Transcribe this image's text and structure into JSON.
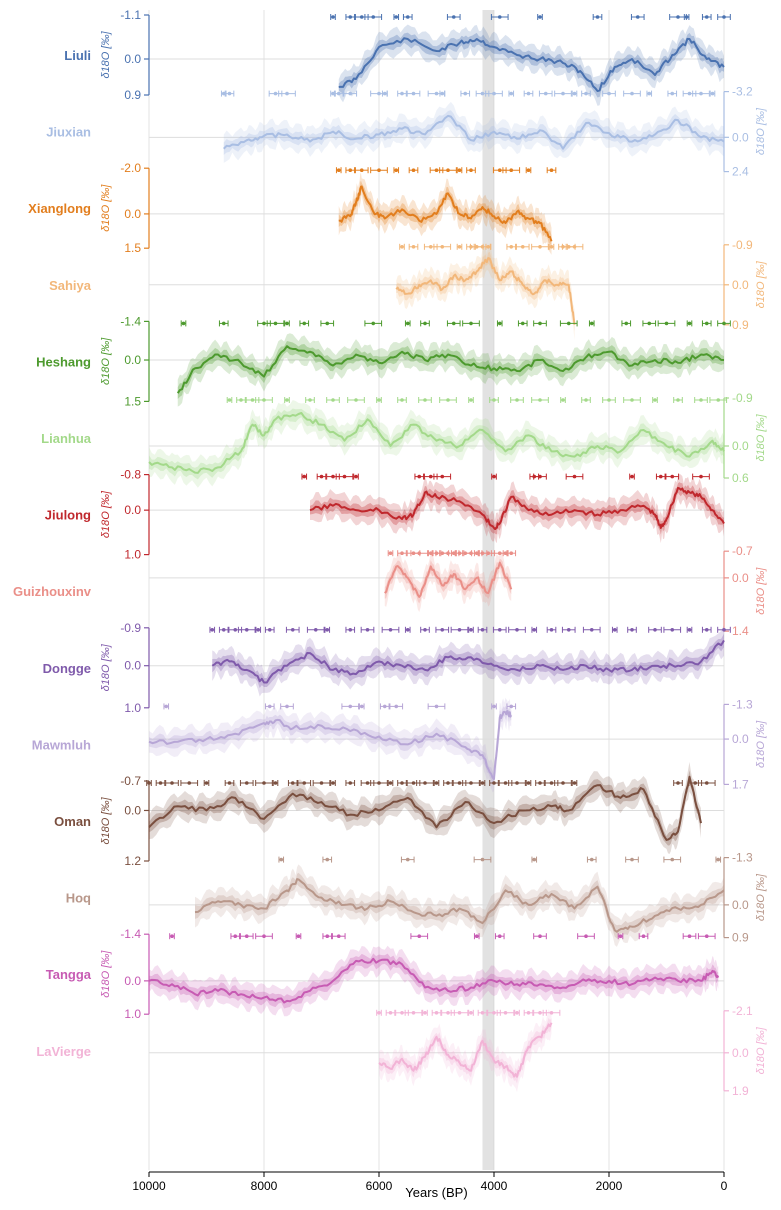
{
  "chart_data": {
    "type": "line",
    "xlabel": "Years (BP)",
    "xlim": [
      10000,
      0
    ],
    "x_ticks": [
      "10000",
      "8000",
      "6000",
      "4000",
      "2000",
      "0"
    ],
    "event_band": [
      4200,
      4000
    ],
    "y_unit": "δ18O [‰]",
    "series": [
      {
        "name": "Liuli",
        "color": "#4a72b0",
        "axis_side": "left",
        "ticks": [
          "-1.1",
          "0.0",
          "0.9"
        ],
        "ylim": [
          0.9,
          -1.1
        ],
        "x": [
          6700,
          6400,
          6000,
          5500,
          5000,
          4600,
          4300,
          4000,
          3600,
          3200,
          2800,
          2500,
          2200,
          1900,
          1600,
          1200,
          900,
          600,
          300,
          0
        ],
        "values": [
          0.7,
          0.5,
          -0.3,
          -0.5,
          -0.2,
          -0.4,
          -0.5,
          -0.3,
          -0.1,
          0.0,
          0.1,
          0.3,
          0.8,
          0.2,
          0.0,
          0.4,
          -0.1,
          -0.5,
          0.0,
          0.2
        ],
        "dates": [
          6800,
          6500,
          6300,
          6100,
          5700,
          5500,
          4700,
          3900,
          3200,
          2200,
          1500,
          800,
          650,
          300,
          0
        ]
      },
      {
        "name": "Jiuxian",
        "color": "#a9bee3",
        "axis_side": "right",
        "ticks": [
          "-3.2",
          "0.0",
          "2.4"
        ],
        "ylim": [
          2.4,
          -3.2
        ],
        "x": [
          8700,
          8300,
          8000,
          7600,
          7200,
          6800,
          6400,
          6000,
          5600,
          5200,
          4800,
          4400,
          4000,
          3600,
          3200,
          2800,
          2400,
          2000,
          1600,
          1200,
          800,
          400,
          0
        ],
        "values": [
          0.8,
          0.2,
          -0.1,
          -0.2,
          0.3,
          -0.4,
          0.1,
          -0.2,
          -0.6,
          -0.2,
          -1.5,
          0.2,
          -0.4,
          0.1,
          -0.5,
          0.8,
          -1.0,
          -0.3,
          0.3,
          -0.2,
          -1.2,
          0.0,
          0.3
        ],
        "dates": [
          8700,
          8600,
          7800,
          7600,
          6800,
          6700,
          6500,
          6000,
          5900,
          5600,
          5400,
          5000,
          4900,
          4500,
          4200,
          4000,
          3700,
          3400,
          3100,
          2800,
          2600,
          2400,
          2000,
          1600,
          1300,
          900,
          600,
          400,
          200
        ]
      },
      {
        "name": "Xianglong",
        "color": "#e27e1e",
        "axis_side": "left",
        "ticks": [
          "-2.0",
          "0.0",
          "1.5"
        ],
        "ylim": [
          1.5,
          -2.0
        ],
        "x": [
          6700,
          6500,
          6400,
          6300,
          6100,
          5900,
          5600,
          5300,
          5000,
          4800,
          4600,
          4400,
          4200,
          4000,
          3800,
          3600,
          3400,
          3200,
          3000
        ],
        "values": [
          0.3,
          0.1,
          -0.5,
          -1.2,
          -0.1,
          0.2,
          -0.2,
          0.3,
          0.0,
          -0.9,
          0.0,
          0.2,
          -0.3,
          0.1,
          0.4,
          -0.1,
          0.2,
          0.4,
          1.2
        ],
        "dates": [
          6700,
          6500,
          6300,
          6000,
          5700,
          5400,
          5000,
          4800,
          4600,
          4400,
          3900,
          3700,
          3400,
          3000
        ]
      },
      {
        "name": "Sahiya",
        "color": "#f2b77a",
        "axis_side": "right",
        "ticks": [
          "-0.9",
          "0.0",
          "0.9"
        ],
        "ylim": [
          0.9,
          -0.9
        ],
        "x": [
          5700,
          5500,
          5300,
          5100,
          4900,
          4700,
          4500,
          4300,
          4100,
          3900,
          3700,
          3500,
          3300,
          3100,
          2900,
          2700,
          2600
        ],
        "values": [
          0.1,
          0.2,
          0.0,
          -0.1,
          0.1,
          -0.2,
          -0.1,
          -0.3,
          -0.6,
          -0.1,
          -0.3,
          0.0,
          0.2,
          -0.1,
          0.0,
          0.0,
          0.9
        ],
        "dates": [
          5600,
          5400,
          5100,
          4900,
          4600,
          4400,
          4300,
          4200,
          4100,
          3700,
          3500,
          3200,
          3000,
          2800,
          2700,
          2600
        ]
      },
      {
        "name": "Heshang",
        "color": "#4d9a2e",
        "axis_side": "left",
        "ticks": [
          "-1.4",
          "0.0",
          "1.5"
        ],
        "ylim": [
          1.5,
          -1.4
        ],
        "x": [
          9500,
          9200,
          8800,
          8400,
          8000,
          7600,
          7200,
          6800,
          6400,
          6000,
          5600,
          5200,
          4800,
          4400,
          4000,
          3600,
          3200,
          2800,
          2400,
          2000,
          1600,
          1200,
          800,
          400,
          0
        ],
        "values": [
          1.2,
          0.3,
          -0.2,
          0.1,
          0.6,
          -0.5,
          -0.3,
          0.2,
          -0.2,
          0.1,
          -0.3,
          0.0,
          -0.2,
          0.2,
          0.3,
          0.4,
          0.0,
          0.4,
          -0.1,
          -0.3,
          0.2,
          0.0,
          0.1,
          -0.2,
          0.0
        ],
        "dates": [
          9400,
          8700,
          8000,
          7800,
          7600,
          7300,
          6900,
          6100,
          5500,
          5200,
          4700,
          4400,
          3900,
          3500,
          3200,
          2700,
          2300,
          1700,
          1300,
          1000,
          600,
          300,
          0
        ]
      },
      {
        "name": "Lianhua",
        "color": "#a3d98a",
        "axis_side": "right",
        "ticks": [
          "-0.9",
          "0.0",
          "0.6"
        ],
        "ylim": [
          0.6,
          -0.9
        ],
        "x": [
          10000,
          9600,
          9200,
          8800,
          8400,
          8200,
          8000,
          7800,
          7400,
          7000,
          6600,
          6200,
          5800,
          5400,
          5000,
          4600,
          4200,
          3800,
          3400,
          3000,
          2600,
          2200,
          1800,
          1400,
          1000,
          600,
          200,
          0
        ],
        "values": [
          0.3,
          0.4,
          0.5,
          0.4,
          0.1,
          -0.4,
          -0.2,
          -0.5,
          -0.6,
          -0.4,
          -0.1,
          -0.5,
          0.0,
          -0.4,
          -0.1,
          0.0,
          -0.3,
          0.1,
          -0.2,
          0.1,
          0.2,
          0.0,
          0.1,
          -0.3,
          0.0,
          0.2,
          -0.1,
          0.1
        ],
        "dates": [
          8600,
          8400,
          8200,
          8000,
          7600,
          7200,
          6800,
          6400,
          6000,
          5600,
          5200,
          4800,
          4400,
          4000,
          3600,
          3200,
          2800,
          2400,
          2000,
          1600,
          1200,
          800,
          400,
          100
        ]
      },
      {
        "name": "Jiulong",
        "color": "#c0282d",
        "axis_side": "left",
        "ticks": [
          "-0.8",
          "0.0",
          "1.0"
        ],
        "ylim": [
          1.0,
          -0.8
        ],
        "x": [
          7200,
          6800,
          6400,
          6000,
          5600,
          5400,
          5200,
          5000,
          4600,
          4200,
          4000,
          3900,
          3700,
          3400,
          3000,
          2600,
          2200,
          1800,
          1400,
          1200,
          1100,
          1000,
          800,
          600,
          400,
          200,
          0
        ],
        "values": [
          0.0,
          -0.1,
          0.0,
          0.0,
          0.2,
          0.1,
          -0.4,
          -0.3,
          -0.2,
          0.1,
          0.4,
          0.3,
          -0.3,
          0.0,
          0.1,
          0.0,
          0.1,
          0.0,
          -0.1,
          0.1,
          0.4,
          0.2,
          -0.5,
          -0.4,
          -0.3,
          0.0,
          0.3
        ],
        "dates": [
          7300,
          7000,
          6800,
          6600,
          6400,
          5300,
          5100,
          4900,
          4000,
          3300,
          3200,
          2600,
          1600,
          1100,
          900,
          400
        ]
      },
      {
        "name": "Guizhouxinv",
        "color": "#ea8f88",
        "axis_side": "right",
        "ticks": [
          "-0.7",
          "0.0",
          "1.4"
        ],
        "ylim": [
          1.4,
          -0.7
        ],
        "x": [
          5900,
          5700,
          5500,
          5300,
          5100,
          4900,
          4700,
          4500,
          4300,
          4100,
          3900,
          3700
        ],
        "values": [
          0.4,
          -0.3,
          0.0,
          0.5,
          -0.3,
          0.2,
          -0.1,
          0.3,
          0.0,
          0.4,
          -0.4,
          0.3
        ],
        "dates": [
          5800,
          5600,
          5400,
          5300,
          5100,
          5000,
          4900,
          4800,
          4700,
          4600,
          4500,
          4400,
          4300,
          4200,
          4100,
          3900,
          3800,
          3700
        ]
      },
      {
        "name": "Dongge",
        "color": "#7f5aab",
        "axis_side": "left",
        "ticks": [
          "-0.9",
          "0.0",
          "1.0"
        ],
        "ylim": [
          1.0,
          -0.9
        ],
        "x": [
          8900,
          8600,
          8300,
          8000,
          7600,
          7200,
          6800,
          6400,
          6000,
          5600,
          5200,
          4800,
          4400,
          4000,
          3600,
          3200,
          2800,
          2400,
          2000,
          1600,
          1200,
          800,
          400,
          0
        ],
        "values": [
          0.0,
          -0.1,
          0.1,
          0.4,
          0.0,
          -0.3,
          0.1,
          0.2,
          -0.1,
          0.0,
          0.1,
          -0.2,
          -0.2,
          0.0,
          0.1,
          0.0,
          0.1,
          0.0,
          0.1,
          0.1,
          0.0,
          0.0,
          -0.1,
          -0.6
        ],
        "dates": [
          8900,
          8700,
          8500,
          8300,
          8100,
          7900,
          7500,
          7100,
          6900,
          6500,
          6200,
          5800,
          5500,
          5200,
          4900,
          4600,
          4400,
          4200,
          3900,
          3600,
          3300,
          3000,
          2700,
          2300,
          1900,
          1600,
          1200,
          900,
          600,
          300,
          0
        ]
      },
      {
        "name": "Mawmluh",
        "color": "#b7a6d6",
        "axis_side": "right",
        "ticks": [
          "-1.3",
          "0.0",
          "1.7"
        ],
        "ylim": [
          1.7,
          -1.3
        ],
        "x": [
          10000,
          9500,
          9000,
          8500,
          8000,
          7800,
          7500,
          7000,
          6500,
          6000,
          5500,
          5000,
          4500,
          4200,
          4000,
          3900,
          3800,
          3700
        ],
        "values": [
          0.1,
          0.1,
          0.0,
          -0.2,
          -0.6,
          -0.7,
          -0.4,
          -0.5,
          -0.3,
          -0.1,
          0.2,
          -0.2,
          0.3,
          0.6,
          1.5,
          -0.8,
          -1.0,
          -0.9
        ],
        "dates": [
          9700,
          7900,
          7600,
          6500,
          6300,
          5900,
          5700,
          5000,
          4000,
          3700
        ]
      },
      {
        "name": "Oman",
        "color": "#7a4f3f",
        "axis_side": "left",
        "ticks": [
          "-0.7",
          "0.0",
          "1.2"
        ],
        "ylim": [
          1.2,
          -0.7
        ],
        "x": [
          10000,
          9500,
          9000,
          8500,
          8000,
          7500,
          7000,
          6500,
          6000,
          5500,
          5000,
          4500,
          4000,
          3500,
          3000,
          2700,
          2200,
          1800,
          1400,
          1000,
          800,
          600,
          400
        ],
        "values": [
          0.4,
          -0.1,
          0.0,
          -0.3,
          0.2,
          -0.4,
          -0.2,
          0.1,
          0.0,
          -0.3,
          0.4,
          -0.2,
          0.3,
          0.0,
          -0.1,
          0.0,
          -0.6,
          -0.3,
          -0.5,
          0.7,
          0.5,
          -0.8,
          0.3
        ],
        "dates": [
          10000,
          9800,
          9600,
          9300,
          9000,
          8600,
          8300,
          8000,
          7800,
          7500,
          7300,
          7000,
          6800,
          6500,
          6200,
          6000,
          5800,
          5600,
          5400,
          5200,
          5000,
          4800,
          4600,
          4400,
          4200,
          4000,
          3800,
          3600,
          3400,
          3200,
          3000,
          2800,
          2600,
          800,
          500,
          300
        ]
      },
      {
        "name": "Hoq",
        "color": "#b8978a",
        "axis_side": "right",
        "ticks": [
          "-1.3",
          "0.0",
          "0.9"
        ],
        "ylim": [
          0.9,
          -1.3
        ],
        "x": [
          9200,
          8800,
          8400,
          8000,
          7600,
          7400,
          7000,
          6600,
          6200,
          5800,
          5400,
          5000,
          4600,
          4200,
          3800,
          3400,
          3000,
          2600,
          2200,
          1900,
          1600,
          1200,
          800,
          400,
          0
        ],
        "values": [
          0.2,
          -0.1,
          0.0,
          0.1,
          -0.4,
          -0.7,
          -0.2,
          0.0,
          0.1,
          -0.1,
          0.2,
          0.3,
          0.1,
          0.5,
          -0.4,
          0.0,
          -0.3,
          0.1,
          -0.5,
          0.7,
          0.6,
          0.3,
          0.1,
          0.0,
          -0.4
        ],
        "dates": [
          7700,
          6900,
          5500,
          4200,
          3300,
          2300,
          1600,
          900,
          100
        ]
      },
      {
        "name": "Tangga",
        "color": "#c75bb3",
        "axis_side": "left",
        "ticks": [
          "-1.4",
          "0.0",
          "1.0"
        ],
        "ylim": [
          1.0,
          -1.4
        ],
        "x": [
          10000,
          9600,
          9200,
          8800,
          8400,
          8000,
          7600,
          7200,
          6800,
          6400,
          6000,
          5600,
          5200,
          4800,
          4400,
          4000,
          3600,
          3200,
          2800,
          2400,
          2000,
          1600,
          1200,
          800,
          400,
          200,
          100
        ],
        "values": [
          0.0,
          0.1,
          0.4,
          0.3,
          0.4,
          0.5,
          0.6,
          0.3,
          0.0,
          -0.6,
          -0.6,
          -0.5,
          0.2,
          0.3,
          0.2,
          0.0,
          0.1,
          0.1,
          0.2,
          0.0,
          0.0,
          0.1,
          -0.1,
          0.0,
          0.0,
          -0.3,
          -0.1
        ],
        "dates": [
          9600,
          8500,
          8300,
          8000,
          7400,
          6900,
          6700,
          5300,
          4300,
          3900,
          3200,
          2400,
          1800,
          1400,
          600,
          300
        ]
      },
      {
        "name": "LaVierge",
        "color": "#f2b3d6",
        "axis_side": "right",
        "ticks": [
          "-2.1",
          "0.0",
          "1.9"
        ],
        "ylim": [
          1.9,
          -2.1
        ],
        "x": [
          6000,
          5800,
          5600,
          5400,
          5200,
          5000,
          4800,
          4600,
          4400,
          4200,
          4000,
          3800,
          3600,
          3400,
          3200,
          3000
        ],
        "values": [
          0.5,
          0.8,
          0.3,
          0.9,
          0.2,
          -0.8,
          0.1,
          0.5,
          0.9,
          -0.6,
          0.4,
          0.7,
          1.2,
          -0.3,
          -0.8,
          -1.5
        ],
        "dates": [
          6000,
          5800,
          5600,
          5400,
          5200,
          5000,
          4800,
          4600,
          4400,
          4200,
          4000,
          3800,
          3600,
          3400,
          3200,
          3000
        ]
      }
    ]
  }
}
